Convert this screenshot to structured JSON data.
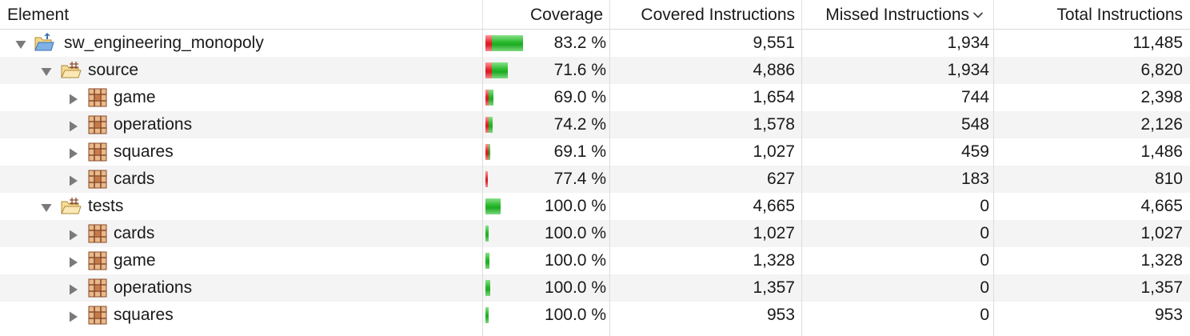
{
  "columns": {
    "element": "Element",
    "coverage": "Coverage",
    "covered": "Covered Instructions",
    "missed": "Missed Instructions",
    "total": "Total Instructions"
  },
  "colors": {
    "covered_bar": "#25b82a",
    "missed_bar": "#e2242c",
    "alt_row": "#f4f4f4"
  },
  "rows": [
    {
      "name": "sw_engineering_monopoly",
      "type": "project",
      "expanded": true,
      "coverage": "83.2 %",
      "covered": "9,551",
      "missed": "1,934",
      "total": "11,485",
      "covered_fraction": 0.832,
      "bar_scale": 1.0
    },
    {
      "name": "source",
      "type": "source-folder",
      "expanded": true,
      "coverage": "71.6 %",
      "covered": "4,886",
      "missed": "1,934",
      "total": "6,820",
      "covered_fraction": 0.716,
      "bar_scale": 0.594
    },
    {
      "name": "game",
      "type": "package",
      "expanded": false,
      "coverage": "69.0 %",
      "covered": "1,654",
      "missed": "744",
      "total": "2,398",
      "covered_fraction": 0.69,
      "bar_scale": 0.209
    },
    {
      "name": "operations",
      "type": "package",
      "expanded": false,
      "coverage": "74.2 %",
      "covered": "1,578",
      "missed": "548",
      "total": "2,126",
      "covered_fraction": 0.742,
      "bar_scale": 0.185
    },
    {
      "name": "squares",
      "type": "package",
      "expanded": false,
      "coverage": "69.1 %",
      "covered": "1,027",
      "missed": "459",
      "total": "1,486",
      "covered_fraction": 0.691,
      "bar_scale": 0.129
    },
    {
      "name": "cards",
      "type": "package",
      "expanded": false,
      "coverage": "77.4 %",
      "covered": "627",
      "missed": "183",
      "total": "810",
      "covered_fraction": 0.774,
      "bar_scale": 0.07
    },
    {
      "name": "tests",
      "type": "source-folder",
      "expanded": true,
      "coverage": "100.0 %",
      "covered": "4,665",
      "missed": "0",
      "total": "4,665",
      "covered_fraction": 1.0,
      "bar_scale": 0.406
    },
    {
      "name": "cards",
      "type": "package",
      "expanded": false,
      "coverage": "100.0 %",
      "covered": "1,027",
      "missed": "0",
      "total": "1,027",
      "covered_fraction": 1.0,
      "bar_scale": 0.089
    },
    {
      "name": "game",
      "type": "package",
      "expanded": false,
      "coverage": "100.0 %",
      "covered": "1,328",
      "missed": "0",
      "total": "1,328",
      "covered_fraction": 1.0,
      "bar_scale": 0.116
    },
    {
      "name": "operations",
      "type": "package",
      "expanded": false,
      "coverage": "100.0 %",
      "covered": "1,357",
      "missed": "0",
      "total": "1,357",
      "covered_fraction": 1.0,
      "bar_scale": 0.118
    },
    {
      "name": "squares",
      "type": "package",
      "expanded": false,
      "coverage": "100.0 %",
      "covered": "953",
      "missed": "0",
      "total": "953",
      "covered_fraction": 1.0,
      "bar_scale": 0.083
    }
  ]
}
